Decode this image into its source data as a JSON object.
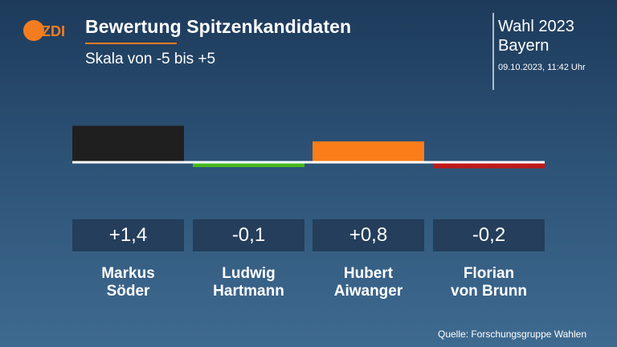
{
  "header": {
    "logo_text": "ZDF",
    "title": "Bewertung Spitzenkandidaten",
    "subtitle": "Skala von -5 bis +5"
  },
  "election": {
    "title": "Wahl 2023",
    "region": "Bayern",
    "timestamp": "09.10.2023, 11:42 Uhr"
  },
  "source": "Quelle: Forschungsgruppe Wahlen",
  "colors": {
    "accent": "#f47c20",
    "box": "#243e5b",
    "baseline": "#ffffff"
  },
  "chart_data": {
    "type": "bar",
    "categories": [
      "Markus Söder",
      "Ludwig Hartmann",
      "Hubert Aiwanger",
      "Florian von Brunn"
    ],
    "values": [
      1.4,
      -0.1,
      0.8,
      -0.2
    ],
    "value_labels": [
      "+1,4",
      "-0,1",
      "+0,8",
      "-0,2"
    ],
    "name_lines": [
      [
        "Markus",
        "Söder"
      ],
      [
        "Ludwig",
        "Hartmann"
      ],
      [
        "Hubert",
        "Aiwanger"
      ],
      [
        "Florian",
        "von Brunn"
      ]
    ],
    "colors": [
      "#1f1f1f",
      "#46b91e",
      "#fa7d19",
      "#c01a1a"
    ],
    "ylim": [
      -5,
      5
    ],
    "grid": false,
    "legend": "none"
  }
}
